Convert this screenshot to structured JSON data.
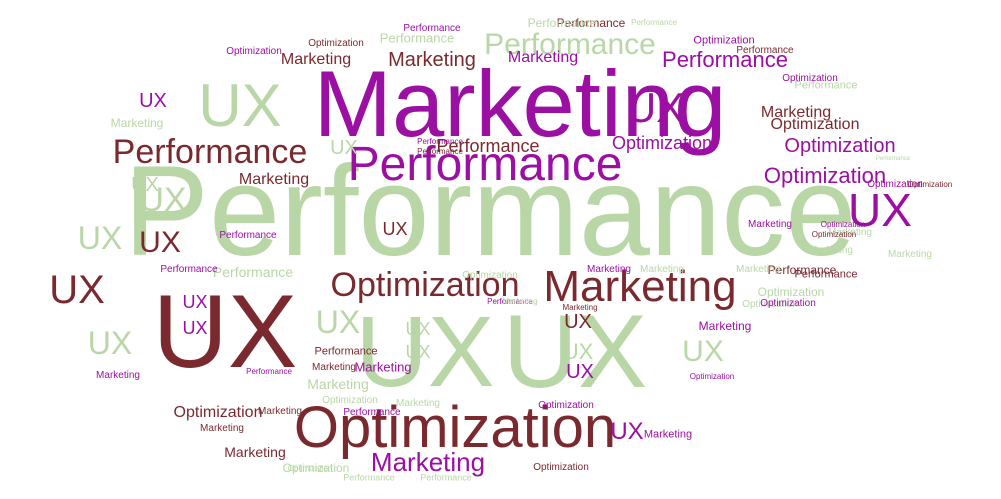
{
  "palette": {
    "purple": "#9B0FA3",
    "maroon": "#7A2A2F",
    "green": "#B9D7A6"
  },
  "words": [
    {
      "text": "Performance",
      "color": "green"
    },
    {
      "text": "Marketing",
      "color": "purple"
    },
    {
      "text": "UX",
      "color": "green"
    },
    {
      "text": "UX",
      "color": "green"
    },
    {
      "text": "UX",
      "color": "maroon"
    },
    {
      "text": "UX",
      "color": "green"
    },
    {
      "text": "Optimization",
      "color": "maroon"
    },
    {
      "text": "Performance",
      "color": "purple"
    },
    {
      "text": "Performance",
      "color": "maroon"
    },
    {
      "text": "Marketing",
      "color": "maroon"
    },
    {
      "text": "Optimization",
      "color": "maroon"
    },
    {
      "text": "UX",
      "color": "purple"
    },
    {
      "text": "UX",
      "color": "maroon"
    },
    {
      "text": "UX",
      "color": "purple"
    },
    {
      "text": "Performance",
      "color": "green"
    },
    {
      "text": "Performance",
      "color": "purple"
    },
    {
      "text": "Marketing",
      "color": "purple"
    },
    {
      "text": "Optimization",
      "color": "purple"
    },
    {
      "text": "Optimization",
      "color": "purple"
    },
    {
      "text": "Optimization",
      "color": "purple"
    },
    {
      "text": "Optimization",
      "color": "maroon"
    },
    {
      "text": "Performance",
      "color": "maroon"
    },
    {
      "text": "Marketing",
      "color": "maroon"
    },
    {
      "text": "Marketing",
      "color": "maroon"
    },
    {
      "text": "Marketing",
      "color": "green"
    },
    {
      "text": "Marketing",
      "color": "purple"
    },
    {
      "text": "Marketing",
      "color": "maroon"
    },
    {
      "text": "UX",
      "color": "green"
    },
    {
      "text": "UX",
      "color": "green"
    },
    {
      "text": "UX",
      "color": "green"
    },
    {
      "text": "UX",
      "color": "green"
    },
    {
      "text": "UX",
      "color": "maroon"
    },
    {
      "text": "UX",
      "color": "green"
    },
    {
      "text": "UX",
      "color": "green"
    },
    {
      "text": "UX",
      "color": "green"
    },
    {
      "text": "UX",
      "color": "maroon"
    },
    {
      "text": "UX",
      "color": "purple"
    },
    {
      "text": "UX",
      "color": "purple"
    },
    {
      "text": "UX",
      "color": "purple"
    },
    {
      "text": "UX",
      "color": "maroon"
    },
    {
      "text": "UX",
      "color": "green"
    },
    {
      "text": "UX",
      "color": "green"
    },
    {
      "text": "UX",
      "color": "purple"
    },
    {
      "text": "UX",
      "color": "green"
    },
    {
      "text": "UX",
      "color": "purple"
    },
    {
      "text": "Performance",
      "color": "maroon"
    },
    {
      "text": "Performance",
      "color": "green"
    },
    {
      "text": "Performance",
      "color": "maroon"
    },
    {
      "text": "Performance",
      "color": "green"
    },
    {
      "text": "Performance",
      "color": "purple"
    },
    {
      "text": "Performance",
      "color": "green"
    },
    {
      "text": "Performance",
      "color": "maroon"
    },
    {
      "text": "Performance",
      "color": "purple"
    },
    {
      "text": "Performance",
      "color": "purple"
    },
    {
      "text": "Performance",
      "color": "purple"
    },
    {
      "text": "Performance",
      "color": "maroon"
    },
    {
      "text": "Performance",
      "color": "purple"
    },
    {
      "text": "Performance",
      "color": "green"
    },
    {
      "text": "Performance",
      "color": "green"
    },
    {
      "text": "Performance",
      "color": "purple"
    },
    {
      "text": "Performance",
      "color": "maroon"
    },
    {
      "text": "Performance",
      "color": "green"
    },
    {
      "text": "Performance",
      "color": "purple"
    },
    {
      "text": "Performance",
      "color": "maroon"
    },
    {
      "text": "Performance",
      "color": "green"
    },
    {
      "text": "Performance",
      "color": "green"
    },
    {
      "text": "Marketing",
      "color": "purple"
    },
    {
      "text": "Marketing",
      "color": "maroon"
    },
    {
      "text": "Marketing",
      "color": "maroon"
    },
    {
      "text": "Marketing",
      "color": "green"
    },
    {
      "text": "Marketing",
      "color": "purple"
    },
    {
      "text": "Marketing",
      "color": "green"
    },
    {
      "text": "Marketing",
      "color": "purple"
    },
    {
      "text": "Marketing",
      "color": "green"
    },
    {
      "text": "Marketing",
      "color": "purple"
    },
    {
      "text": "Marketing",
      "color": "maroon"
    },
    {
      "text": "Marketing",
      "color": "green"
    },
    {
      "text": "Marketing",
      "color": "maroon"
    },
    {
      "text": "Marketing",
      "color": "maroon"
    },
    {
      "text": "Marketing",
      "color": "green"
    },
    {
      "text": "Marketing",
      "color": "maroon"
    },
    {
      "text": "Marketing",
      "color": "purple"
    },
    {
      "text": "Marketing",
      "color": "purple"
    },
    {
      "text": "Marketing",
      "color": "green"
    },
    {
      "text": "Marketing",
      "color": "green"
    },
    {
      "text": "Marketing",
      "color": "green"
    },
    {
      "text": "Optimization",
      "color": "green"
    },
    {
      "text": "Optimization",
      "color": "maroon"
    },
    {
      "text": "Optimization",
      "color": "maroon"
    },
    {
      "text": "Optimization",
      "color": "purple"
    },
    {
      "text": "Optimization",
      "color": "green"
    },
    {
      "text": "Optimization",
      "color": "green"
    },
    {
      "text": "Optimization",
      "color": "purple"
    },
    {
      "text": "Optimization",
      "color": "purple"
    },
    {
      "text": "Optimization",
      "color": "purple"
    },
    {
      "text": "Optimization",
      "color": "purple"
    },
    {
      "text": "Optimization",
      "color": "purple"
    },
    {
      "text": "Optimization",
      "color": "green"
    },
    {
      "text": "Optimization",
      "color": "purple"
    },
    {
      "text": "Optimization",
      "color": "green"
    },
    {
      "text": "Optimization",
      "color": "purple"
    },
    {
      "text": "Optimization",
      "color": "maroon"
    },
    {
      "text": "Optimization",
      "color": "green"
    },
    {
      "text": "Optimization",
      "color": "maroon"
    },
    {
      "text": "Optimization",
      "color": "maroon"
    }
  ]
}
